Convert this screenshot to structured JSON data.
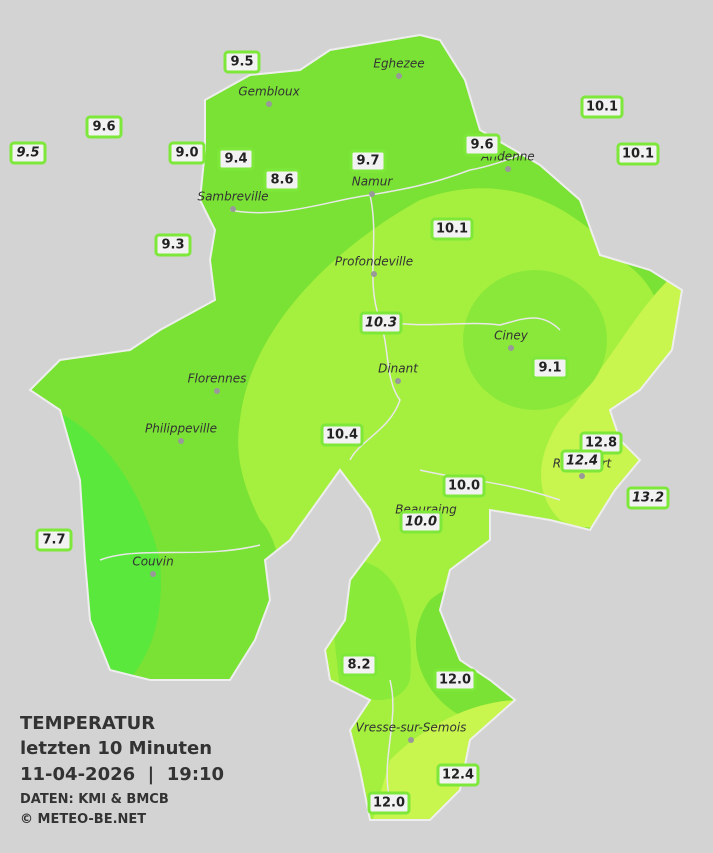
{
  "legend": {
    "title": "TEMPERATUR",
    "period": "letzten 10 Minuten",
    "timestamp": "11-04-2026  |  19:10",
    "source": "DATEN: KMI & BMCB",
    "copyright": "© METEO-BE.NET"
  },
  "cities": [
    "Eghezee",
    "Gembloux",
    "Andenne",
    "Namur",
    "Sambreville",
    "Profondeville",
    "Ciney",
    "Dinant",
    "Florennes",
    "Philippeville",
    "Rochefort",
    "Beauraing",
    "Couvin",
    "Vresse-sur-Semois"
  ],
  "stations": [
    {
      "value": "9.5"
    },
    {
      "value": "9.6"
    },
    {
      "value": "9.5",
      "italic": true
    },
    {
      "value": "9.0"
    },
    {
      "value": "9.4"
    },
    {
      "value": "8.6"
    },
    {
      "value": "9.7"
    },
    {
      "value": "9.6"
    },
    {
      "value": "10.1"
    },
    {
      "value": "10.1"
    },
    {
      "value": "10.1"
    },
    {
      "value": "9.3"
    },
    {
      "value": "10.3",
      "italic": true
    },
    {
      "value": "9.1"
    },
    {
      "value": "10.4"
    },
    {
      "value": "12.8"
    },
    {
      "value": "12.4",
      "italic": true
    },
    {
      "value": "10.0"
    },
    {
      "value": "10.0",
      "italic": true
    },
    {
      "value": "13.2",
      "italic": true
    },
    {
      "value": "7.7"
    },
    {
      "value": "8.2"
    },
    {
      "value": "12.0"
    },
    {
      "value": "12.4"
    },
    {
      "value": "12.0"
    }
  ]
}
